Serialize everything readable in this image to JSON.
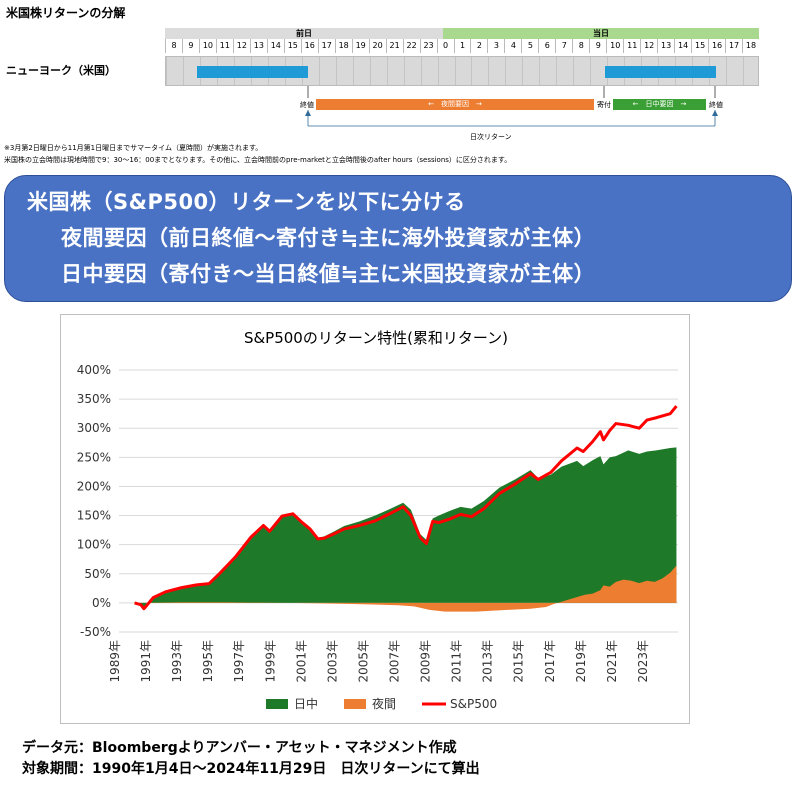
{
  "page": {
    "title": "米国株リターンの分解"
  },
  "timeline": {
    "prev_day_label": "前日",
    "today_label": "当日",
    "hours": [
      "8",
      "9",
      "10",
      "11",
      "12",
      "13",
      "14",
      "15",
      "16",
      "17",
      "18",
      "19",
      "20",
      "21",
      "22",
      "23",
      "0",
      "1",
      "2",
      "3",
      "4",
      "5",
      "6",
      "7",
      "8",
      "9",
      "10",
      "11",
      "12",
      "13",
      "14",
      "15",
      "16",
      "17",
      "18"
    ],
    "market_label": "ニューヨーク（米国）",
    "close_label_prev": "終値",
    "open_label": "寄付",
    "close_label_today": "終値",
    "overnight_label": "←　夜間要因　→",
    "intraday_label": "←　日中要因　→",
    "daily_return_label": "日次リターン",
    "note1": "※3月第2日曜日から11月第1日曜日までサマータイム（夏時間）が実施されます。",
    "note2": "米国株の立会時間は現地時間で9：30～16：00までとなります。その他に、立会時間前のpre-marketと立会時間後のafter hours（sessions）に区分されます。"
  },
  "banner": {
    "line1": "米国株（S&P500）リターンを以下に分ける",
    "line2": "夜間要因（前日終値～寄付き≒主に海外投資家が主体）",
    "line3": "日中要因（寄付き～当日終値≒主に米国投資家が主体）"
  },
  "chart_data": {
    "type": "area",
    "title": "S&P500のリターン特性(累和リターン)",
    "xlabel": "",
    "ylabel": "",
    "ylim": [
      -50,
      400
    ],
    "yticks": [
      "-50%",
      "0%",
      "50%",
      "100%",
      "150%",
      "200%",
      "250%",
      "300%",
      "350%",
      "400%"
    ],
    "xticks": [
      "1989年",
      "1991年",
      "1993年",
      "1995年",
      "1997年",
      "1999年",
      "2001年",
      "2003年",
      "2005年",
      "2007年",
      "2009年",
      "2011年",
      "2013年",
      "2015年",
      "2017年",
      "2019年",
      "2021年",
      "2023年"
    ],
    "xlim": [
      1989.0,
      2025.0
    ],
    "legend_position": "bottom",
    "grid": true,
    "series": [
      {
        "name": "日中",
        "color": "#1e7a28",
        "kind": "area",
        "x": [
          1990.0,
          1990.4,
          1990.6,
          1990.8,
          1991.2,
          1992.0,
          1993.0,
          1994.0,
          1994.8,
          1995.5,
          1996.5,
          1997.5,
          1998.3,
          1998.7,
          1999.5,
          2000.2,
          2000.8,
          2001.3,
          2001.8,
          2002.2,
          2002.8,
          2003.5,
          2004.5,
          2005.5,
          2006.5,
          2007.3,
          2007.8,
          2008.4,
          2008.8,
          2009.2,
          2009.6,
          2010.3,
          2011.0,
          2011.7,
          2012.5,
          2013.5,
          2014.5,
          2015.5,
          2016.0,
          2016.8,
          2017.5,
          2018.5,
          2018.9,
          2019.5,
          2020.0,
          2020.2,
          2020.6,
          2021.0,
          2021.8,
          2022.5,
          2023.0,
          2023.6,
          2024.5,
          2024.9
        ],
        "values": [
          0,
          -3,
          -10,
          -4,
          8,
          18,
          25,
          30,
          32,
          50,
          78,
          112,
          132,
          122,
          148,
          152,
          138,
          128,
          112,
          114,
          122,
          132,
          140,
          150,
          162,
          172,
          160,
          118,
          108,
          145,
          150,
          158,
          165,
          162,
          175,
          198,
          212,
          228,
          214,
          220,
          234,
          244,
          235,
          245,
          252,
          238,
          250,
          252,
          262,
          256,
          260,
          262,
          266,
          267
        ]
      },
      {
        "name": "夜間",
        "color": "#ed7d31",
        "kind": "area",
        "x": [
          1990.0,
          1993.0,
          1996.0,
          2000.0,
          2004.0,
          2007.0,
          2008.0,
          2009.0,
          2010.0,
          2012.0,
          2014.0,
          2015.5,
          2016.5,
          2017.0,
          2018.0,
          2019.0,
          2019.5,
          2020.0,
          2020.2,
          2020.6,
          2021.0,
          2021.5,
          2022.0,
          2022.5,
          2023.0,
          2023.5,
          2024.0,
          2024.5,
          2024.9
        ],
        "values": [
          0,
          1,
          1,
          0,
          -2,
          -4,
          -6,
          -12,
          -15,
          -15,
          -12,
          -10,
          -7,
          -2,
          6,
          14,
          16,
          22,
          30,
          28,
          36,
          40,
          38,
          34,
          38,
          36,
          42,
          52,
          64
        ]
      },
      {
        "name": "S&P500",
        "color": "#ff0000",
        "kind": "line",
        "x": [
          1990.0,
          1990.4,
          1990.6,
          1990.8,
          1991.2,
          1992.0,
          1993.0,
          1994.0,
          1994.8,
          1995.5,
          1996.5,
          1997.5,
          1998.3,
          1998.7,
          1999.5,
          2000.2,
          2000.8,
          2001.3,
          2001.8,
          2002.2,
          2002.8,
          2003.5,
          2004.5,
          2005.5,
          2006.5,
          2007.3,
          2007.8,
          2008.4,
          2008.8,
          2009.2,
          2009.6,
          2010.3,
          2011.0,
          2011.7,
          2012.5,
          2013.5,
          2014.5,
          2015.5,
          2016.0,
          2016.8,
          2017.5,
          2018.5,
          2018.9,
          2019.5,
          2020.0,
          2020.2,
          2020.6,
          2021.0,
          2021.8,
          2022.5,
          2023.0,
          2023.6,
          2024.5,
          2024.9
        ],
        "values": [
          0,
          -3,
          -10,
          -4,
          9,
          19,
          26,
          31,
          33,
          51,
          79,
          113,
          133,
          123,
          149,
          153,
          138,
          127,
          110,
          111,
          118,
          127,
          133,
          141,
          154,
          165,
          150,
          112,
          102,
          140,
          138,
          144,
          152,
          148,
          162,
          188,
          204,
          222,
          212,
          224,
          244,
          266,
          260,
          277,
          294,
          280,
          296,
          308,
          305,
          300,
          314,
          318,
          325,
          338
        ]
      }
    ]
  },
  "footer": {
    "source": "データ元：Bloombergよりアンバー・アセット・マネジメント作成",
    "period": "対象期間：1990年1月4日～2024年11月29日　日次リターンにて算出"
  }
}
